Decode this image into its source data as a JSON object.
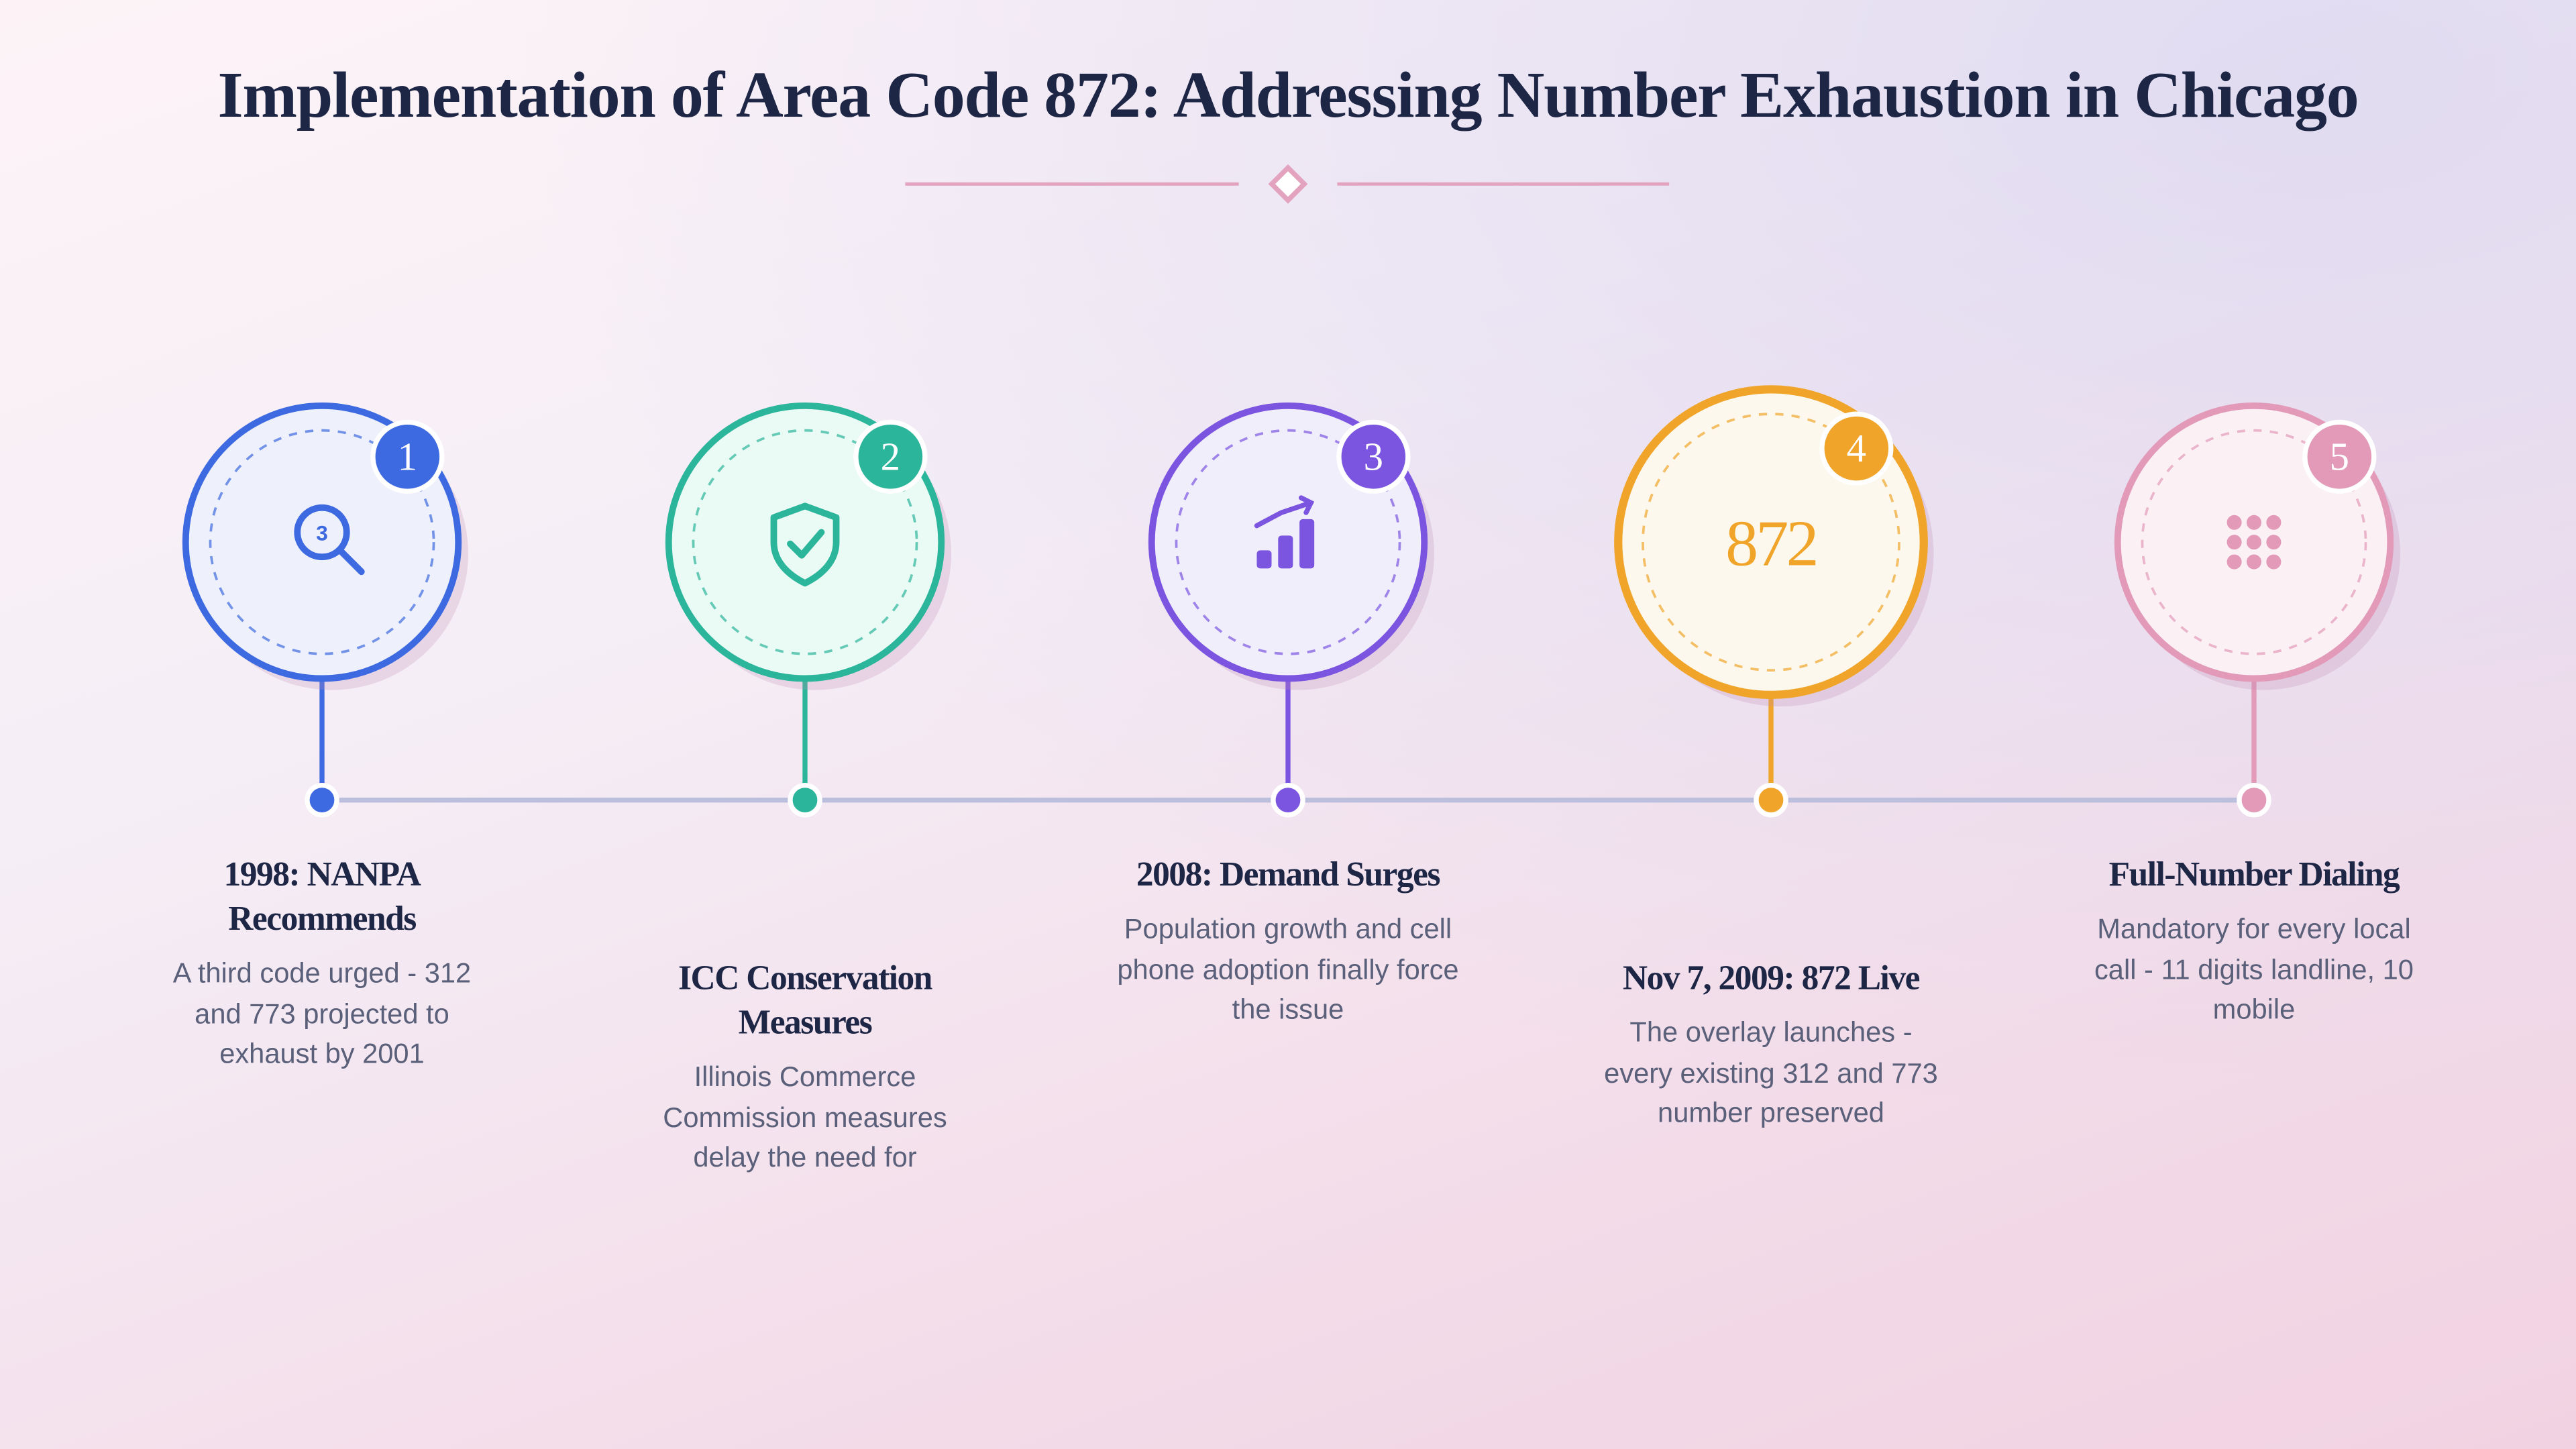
{
  "title": "Implementation of Area Code 872: Addressing Number Exhaustion in Chicago",
  "steps": [
    {
      "number": "1",
      "title": "1998: NANPA Recommends",
      "description": "A third code urged - 312 and 773 projected to exhaust by 2001",
      "icon_text": "3"
    },
    {
      "number": "2",
      "title": "ICC Conservation Measures",
      "description": "Illinois Commerce Commission measures delay the need for"
    },
    {
      "number": "3",
      "title": "2008: Demand Surges",
      "description": "Population growth and cell phone adoption finally force the issue"
    },
    {
      "number": "4",
      "title": "Nov 7, 2009: 872 Live",
      "description": "The overlay launches - every existing 312 and 773 number preserved",
      "icon_text": "872"
    },
    {
      "number": "5",
      "title": "Full-Number Dialing",
      "description": "Mandatory for every local call - 11 digits landline, 10 mobile"
    }
  ]
}
